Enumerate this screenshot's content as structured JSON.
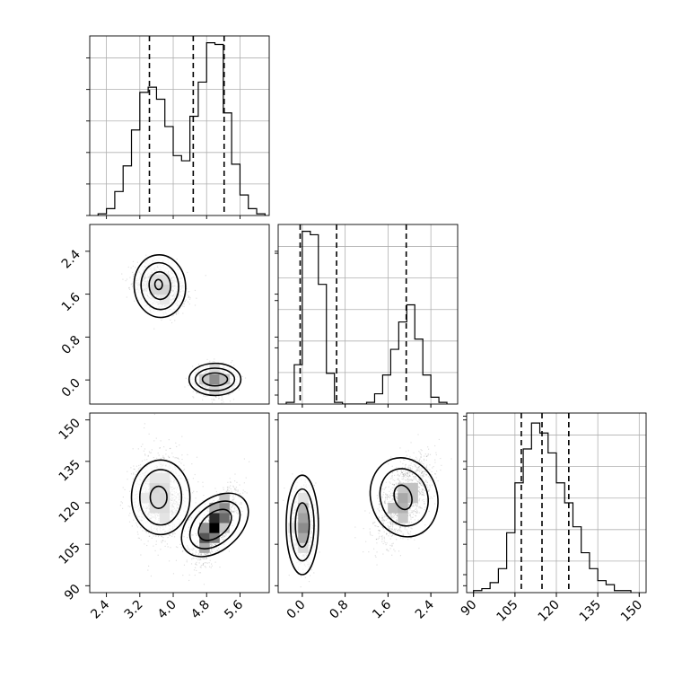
{
  "chart_data": {
    "type": "corner",
    "title": "",
    "grid": true,
    "variables": [
      {
        "xticks": [
          "2.4",
          "3.2",
          "4.0",
          "4.8",
          "5.6"
        ],
        "xtick_values": [
          2.4,
          3.2,
          4.0,
          4.8,
          5.6
        ],
        "range": [
          2.0,
          6.3
        ]
      },
      {
        "ticks": [
          "0.0",
          "0.8",
          "1.6",
          "2.4"
        ],
        "tick_values": [
          0.0,
          0.8,
          1.6,
          2.4
        ],
        "range": [
          -0.45,
          2.9
        ]
      },
      {
        "ticks": [
          "90",
          "105",
          "120",
          "135",
          "150"
        ],
        "tick_values": [
          90,
          105,
          120,
          135,
          150
        ],
        "range": [
          87.5,
          152.5
        ]
      }
    ],
    "diagonals": [
      {
        "name": "hist-var0",
        "bin_edges": [
          2.2,
          2.4,
          2.6,
          2.8,
          3.0,
          3.2,
          3.4,
          3.6,
          3.8,
          4.0,
          4.2,
          4.4,
          4.6,
          4.8,
          5.0,
          5.2,
          5.4,
          5.6,
          5.8,
          6.0,
          6.2
        ],
        "counts": [
          1,
          4,
          14,
          29,
          50,
          72,
          75,
          68,
          52,
          35,
          32,
          58,
          78,
          101,
          100,
          60,
          30,
          12,
          4,
          1
        ],
        "ymax": 105,
        "quantiles": [
          3.43,
          4.48,
          5.22
        ]
      },
      {
        "name": "hist-var1",
        "bin_edges": [
          -0.3,
          -0.15,
          0.0,
          0.15,
          0.3,
          0.45,
          0.6,
          0.75,
          0.9,
          1.05,
          1.2,
          1.35,
          1.5,
          1.65,
          1.8,
          1.95,
          2.1,
          2.25,
          2.4,
          2.55,
          2.7
        ],
        "counts": [
          1,
          23,
          101,
          99,
          70,
          18,
          1,
          0,
          0,
          0,
          1,
          6,
          17,
          32,
          48,
          58,
          38,
          17,
          4,
          1
        ],
        "ymax": 105,
        "quantiles": [
          -0.04,
          0.64,
          1.94
        ]
      },
      {
        "name": "hist-var2",
        "bin_edges": [
          90,
          93,
          96,
          99,
          102,
          105,
          108,
          111,
          114,
          117,
          120,
          123,
          126,
          129,
          132,
          135,
          138,
          141,
          144,
          147
        ],
        "counts": [
          1,
          2,
          5,
          12,
          30,
          55,
          72,
          85,
          80,
          70,
          55,
          45,
          33,
          20,
          12,
          6,
          4,
          1,
          1
        ],
        "ymax": 90,
        "quantiles": [
          107.3,
          114.8,
          124.5
        ]
      }
    ],
    "pairs": [
      {
        "name": "pair-0-1",
        "x_var": 0,
        "y_var": 1,
        "clusters": [
          {
            "cx": 3.68,
            "cy": 1.74,
            "sx": 0.3,
            "sy": 0.22,
            "rho": -0.3,
            "weight": 0.5
          },
          {
            "cx": 5.0,
            "cy": 0.0,
            "sx": 0.22,
            "sy": 0.13,
            "rho": 0.0,
            "weight": 0.5
          }
        ],
        "contours": [
          {
            "cx": 3.68,
            "cy": 1.75,
            "rx": 0.75,
            "ry": 0.48,
            "rot": 0.12
          },
          {
            "cx": 3.68,
            "cy": 1.75,
            "rx": 0.56,
            "ry": 0.35,
            "rot": 0.12
          },
          {
            "cx": 3.68,
            "cy": 1.76,
            "rx": 0.33,
            "ry": 0.2,
            "rot": 0.12
          },
          {
            "cx": 3.65,
            "cy": 1.78,
            "rx": 0.12,
            "ry": 0.07,
            "rot": 0.12
          },
          {
            "cx": 5.0,
            "cy": 0.01,
            "rx": 0.62,
            "ry": 0.3,
            "rot": 0
          },
          {
            "cx": 5.0,
            "cy": 0.01,
            "rx": 0.47,
            "ry": 0.21,
            "rot": 0
          },
          {
            "cx": 5.0,
            "cy": 0.01,
            "rx": 0.3,
            "ry": 0.12,
            "rot": 0
          }
        ]
      },
      {
        "name": "pair-0-2",
        "x_var": 0,
        "y_var": 2,
        "clusters": [
          {
            "cx": 3.68,
            "cy": 122,
            "sx": 0.32,
            "sy": 8,
            "rho": 0.0,
            "weight": 0.5
          },
          {
            "cx": 5.0,
            "cy": 112,
            "sx": 0.25,
            "sy": 6.5,
            "rho": 0.75,
            "weight": 0.5
          }
        ],
        "contours": [
          {
            "cx": 3.7,
            "cy": 122,
            "rx": 0.7,
            "ry": 13.5,
            "rot": 0
          },
          {
            "cx": 3.7,
            "cy": 122,
            "rx": 0.5,
            "ry": 10.0,
            "rot": 0
          },
          {
            "cx": 3.65,
            "cy": 122,
            "rx": 0.2,
            "ry": 4.0,
            "rot": 0
          },
          {
            "cx": 5.0,
            "cy": 112,
            "rx": 0.6,
            "ry": 14.0,
            "rot": 0.45
          },
          {
            "cx": 5.0,
            "cy": 112,
            "rx": 0.45,
            "ry": 10.5,
            "rot": 0.45
          },
          {
            "cx": 5.0,
            "cy": 112,
            "rx": 0.28,
            "ry": 7.0,
            "rot": 0.45
          }
        ]
      },
      {
        "name": "pair-1-2",
        "x_var": 1,
        "y_var": 2,
        "clusters": [
          {
            "cx": 0.0,
            "cy": 112,
            "sx": 0.1,
            "sy": 6.5,
            "rho": 0.0,
            "weight": 0.5
          },
          {
            "cx": 1.9,
            "cy": 122,
            "sx": 0.26,
            "sy": 8,
            "rho": 0.6,
            "weight": 0.5
          }
        ],
        "contours": [
          {
            "cx": 0.0,
            "cy": 112,
            "rx": 0.3,
            "ry": 18.0,
            "rot": 0
          },
          {
            "cx": 0.0,
            "cy": 112,
            "rx": 0.22,
            "ry": 13.0,
            "rot": 0
          },
          {
            "cx": 0.0,
            "cy": 112,
            "rx": 0.13,
            "ry": 8.0,
            "rot": 0
          },
          {
            "cx": 1.9,
            "cy": 122,
            "rx": 0.62,
            "ry": 14.5,
            "rot": 0.4
          },
          {
            "cx": 1.9,
            "cy": 122,
            "rx": 0.44,
            "ry": 10.5,
            "rot": 0.4
          },
          {
            "cx": 1.88,
            "cy": 122,
            "rx": 0.16,
            "ry": 4.5,
            "rot": 0.4
          }
        ]
      }
    ]
  }
}
